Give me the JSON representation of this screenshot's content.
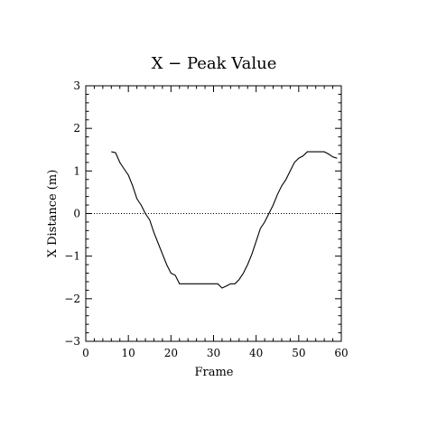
{
  "chart_data": {
    "type": "line",
    "title": "X − Peak Value",
    "xlabel": "Frame",
    "ylabel": "X Distance (m)",
    "xlim": [
      0,
      60
    ],
    "ylim": [
      -3,
      3
    ],
    "xticks": [
      0,
      10,
      20,
      30,
      40,
      50,
      60
    ],
    "xtick_labels": [
      "0",
      "10",
      "20",
      "30",
      "40",
      "50",
      "60"
    ],
    "yticks": [
      -3,
      -2,
      -1,
      0,
      1,
      2,
      3
    ],
    "ytick_labels": [
      "−3",
      "−2",
      "−1",
      "0",
      "1",
      "2",
      "3"
    ],
    "grid": false,
    "reference_line": {
      "y": 0,
      "style": "dotted"
    },
    "line_color": "#000000",
    "series": [
      {
        "x": [
          6,
          7,
          8,
          9,
          10,
          11,
          12,
          13,
          14,
          15,
          16,
          17,
          18,
          19,
          20,
          21,
          22,
          23,
          24,
          25,
          26,
          27,
          28,
          29,
          30,
          31,
          32,
          33,
          34,
          35,
          36,
          37,
          38,
          39,
          40,
          41,
          42,
          43,
          44,
          45,
          46,
          47,
          48,
          49,
          50,
          51,
          52,
          53,
          54,
          55,
          56,
          57,
          58,
          59
        ],
        "y": [
          1.45,
          1.43,
          1.2,
          1.05,
          0.9,
          0.65,
          0.35,
          0.2,
          0.0,
          -0.15,
          -0.45,
          -0.7,
          -0.95,
          -1.2,
          -1.4,
          -1.45,
          -1.65,
          -1.65,
          -1.65,
          -1.65,
          -1.65,
          -1.65,
          -1.65,
          -1.65,
          -1.65,
          -1.65,
          -1.75,
          -1.7,
          -1.65,
          -1.65,
          -1.55,
          -1.4,
          -1.2,
          -0.95,
          -0.65,
          -0.35,
          -0.2,
          0.0,
          0.2,
          0.45,
          0.65,
          0.8,
          1.0,
          1.2,
          1.3,
          1.35,
          1.45,
          1.45,
          1.45,
          1.45,
          1.45,
          1.4,
          1.33,
          1.3
        ]
      }
    ]
  }
}
